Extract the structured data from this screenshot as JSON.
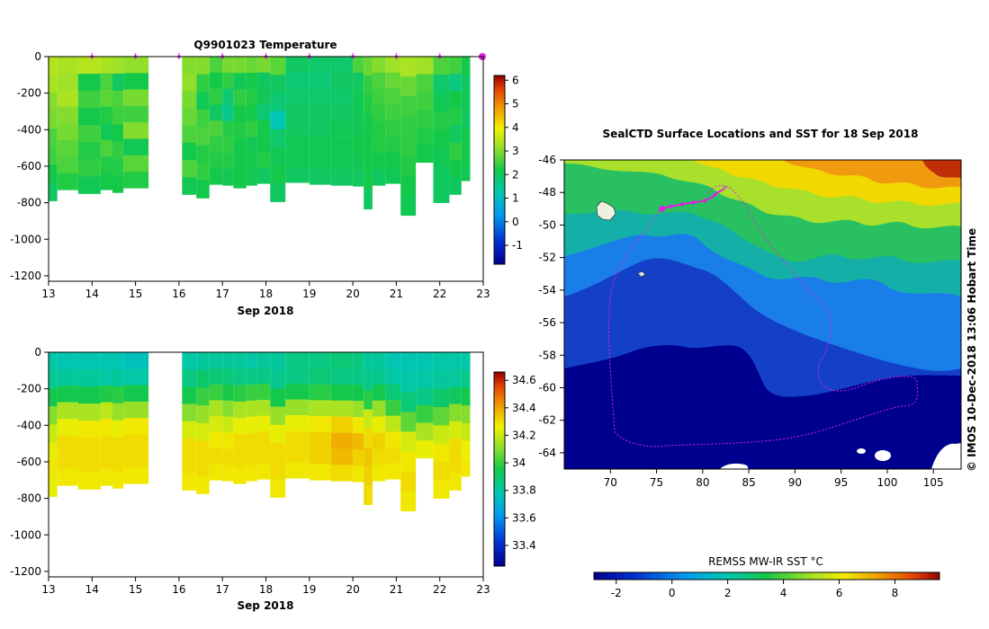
{
  "chart_data": [
    {
      "id": "temp",
      "type": "heatmap",
      "title": "Q9901023  Temperature",
      "xlabel": "Sep 2018",
      "x_ticks": [
        13,
        14,
        15,
        16,
        17,
        18,
        19,
        20,
        21,
        22,
        23
      ],
      "y_ticks": [
        0,
        -200,
        -400,
        -600,
        -800,
        -1000,
        -1200
      ],
      "xlim": [
        13,
        23
      ],
      "ylim": [
        -1230,
        0
      ],
      "profile_times": [
        14,
        15,
        16,
        17,
        18,
        19,
        20,
        21,
        22,
        23
      ],
      "colorbar": {
        "ticks": [
          -1,
          0,
          1,
          2,
          3,
          4,
          5,
          6
        ],
        "range": [
          -1.8,
          6.2
        ]
      },
      "profiles": [
        {
          "t0": 13.0,
          "t1": 13.2,
          "depth": -790,
          "values": [
            3.4,
            3.3,
            3.0,
            2.9,
            2.6,
            2.5,
            2.2,
            2.0
          ]
        },
        {
          "t0": 13.2,
          "t1": 13.68,
          "depth": -730,
          "values": [
            3.3,
            3.2,
            3.3,
            3.0,
            2.9,
            2.7,
            2.6,
            2.3
          ]
        },
        {
          "t0": 13.68,
          "t1": 14.2,
          "depth": -750,
          "values": [
            3.4,
            2.2,
            2.5,
            2.2,
            2.5,
            2.3,
            2.4,
            2.1
          ]
        },
        {
          "t0": 14.2,
          "t1": 14.47,
          "depth": -730,
          "values": [
            3.3,
            2.6,
            2.7,
            2.3,
            2.1,
            2.6,
            2.3,
            2.2
          ]
        },
        {
          "t0": 14.47,
          "t1": 14.72,
          "depth": -745,
          "values": [
            3.2,
            2.0,
            2.6,
            2.5,
            2.2,
            2.4,
            2.3,
            2.2
          ]
        },
        {
          "t0": 14.72,
          "t1": 15.3,
          "depth": -720,
          "values": [
            3.1,
            2.2,
            2.9,
            2.5,
            3.0,
            2.1,
            2.7,
            2.3
          ]
        },
        {
          "t0": 16.07,
          "t1": 16.4,
          "depth": -755,
          "values": [
            3.0,
            3.1,
            2.9,
            2.8,
            2.6,
            2.2,
            2.6,
            2.1
          ]
        },
        {
          "t0": 16.4,
          "t1": 16.7,
          "depth": -775,
          "values": [
            3.0,
            2.4,
            2.1,
            2.5,
            2.6,
            2.3,
            2.4,
            2.2
          ]
        },
        {
          "t0": 16.7,
          "t1": 17.0,
          "depth": -700,
          "values": [
            2.6,
            2.2,
            2.4,
            2.0,
            2.6,
            2.4,
            2.3,
            2.2
          ]
        },
        {
          "t0": 17.0,
          "t1": 17.25,
          "depth": -705,
          "values": [
            2.9,
            2.4,
            1.8,
            1.6,
            2.3,
            2.4,
            2.3,
            2.1
          ]
        },
        {
          "t0": 17.25,
          "t1": 17.55,
          "depth": -720,
          "values": [
            2.9,
            2.1,
            2.4,
            2.2,
            2.3,
            2.2,
            2.2,
            2.2
          ]
        },
        {
          "t0": 17.55,
          "t1": 17.8,
          "depth": -705,
          "values": [
            2.8,
            2.2,
            2.3,
            2.2,
            2.4,
            2.1,
            2.2,
            2.1
          ]
        },
        {
          "t0": 17.8,
          "t1": 18.1,
          "depth": -695,
          "values": [
            2.9,
            2.0,
            2.1,
            1.8,
            2.2,
            2.2,
            2.3,
            2.0
          ]
        },
        {
          "t0": 18.1,
          "t1": 18.45,
          "depth": -795,
          "values": [
            2.7,
            2.0,
            1.8,
            1.2,
            1.9,
            2.1,
            2.2,
            2.0
          ]
        },
        {
          "t0": 18.45,
          "t1": 19.0,
          "depth": -690,
          "values": [
            2.0,
            1.8,
            1.9,
            2.0,
            2.0,
            2.1,
            2.1,
            2.0
          ]
        },
        {
          "t0": 19.0,
          "t1": 19.5,
          "depth": -700,
          "values": [
            1.9,
            1.8,
            1.9,
            2.0,
            2.0,
            2.1,
            2.1,
            2.0
          ]
        },
        {
          "t0": 19.5,
          "t1": 20.0,
          "depth": -705,
          "values": [
            1.9,
            2.0,
            1.9,
            2.0,
            2.1,
            2.1,
            2.1,
            2.0
          ]
        },
        {
          "t0": 20.0,
          "t1": 20.25,
          "depth": -710,
          "values": [
            2.6,
            2.0,
            2.1,
            2.1,
            2.1,
            2.2,
            2.1,
            2.0
          ]
        },
        {
          "t0": 20.25,
          "t1": 20.45,
          "depth": -835,
          "values": [
            2.8,
            2.4,
            2.3,
            2.2,
            2.2,
            2.2,
            2.2,
            2.0
          ]
        },
        {
          "t0": 20.45,
          "t1": 20.75,
          "depth": -705,
          "values": [
            3.0,
            2.6,
            2.5,
            2.4,
            2.3,
            2.3,
            2.2,
            2.0
          ]
        },
        {
          "t0": 20.75,
          "t1": 21.1,
          "depth": -695,
          "values": [
            3.2,
            2.8,
            2.6,
            2.5,
            2.4,
            2.3,
            2.2,
            2.1
          ]
        },
        {
          "t0": 21.1,
          "t1": 21.45,
          "depth": -870,
          "values": [
            3.3,
            2.8,
            2.5,
            2.4,
            2.4,
            2.3,
            2.2,
            2.1
          ]
        },
        {
          "t0": 21.45,
          "t1": 21.85,
          "depth": -580,
          "values": [
            3.2,
            2.6,
            2.5,
            2.4,
            2.3,
            2.2
          ]
        },
        {
          "t0": 21.85,
          "t1": 22.22,
          "depth": -800,
          "values": [
            2.6,
            1.9,
            2.1,
            2.3,
            2.2,
            2.1,
            2.0,
            2.0
          ]
        },
        {
          "t0": 22.22,
          "t1": 22.5,
          "depth": -755,
          "values": [
            2.5,
            1.7,
            2.2,
            2.3,
            2.0,
            2.4,
            2.2,
            2.0
          ]
        },
        {
          "t0": 22.5,
          "t1": 22.7,
          "depth": -680,
          "values": [
            2.2,
            2.0,
            2.1,
            2.0,
            2.2,
            2.2,
            2.1
          ]
        }
      ]
    },
    {
      "id": "sal",
      "type": "heatmap",
      "title": "",
      "xlabel": "Sep 2018",
      "x_ticks": [
        13,
        14,
        15,
        16,
        17,
        18,
        19,
        20,
        21,
        22,
        23
      ],
      "y_ticks": [
        0,
        -200,
        -400,
        -600,
        -800,
        -1000,
        -1200
      ],
      "xlim": [
        13,
        23
      ],
      "ylim": [
        -1230,
        0
      ],
      "colorbar": {
        "ticks": [
          33.4,
          33.6,
          33.8,
          34,
          34.2,
          34.4,
          34.6
        ],
        "range": [
          33.25,
          34.66
        ]
      },
      "profiles": [
        {
          "t0": 13.0,
          "t1": 13.2,
          "depth": -790,
          "values": [
            33.8,
            33.83,
            33.95,
            34.1,
            34.2,
            34.25,
            34.28,
            34.25
          ]
        },
        {
          "t0": 13.2,
          "t1": 13.68,
          "depth": -730,
          "values": [
            33.78,
            33.82,
            33.95,
            34.15,
            34.25,
            34.3,
            34.3,
            34.28
          ]
        },
        {
          "t0": 13.68,
          "t1": 14.2,
          "depth": -750,
          "values": [
            33.78,
            33.82,
            33.95,
            34.15,
            34.28,
            34.3,
            34.3,
            34.28
          ]
        },
        {
          "t0": 14.2,
          "t1": 14.47,
          "depth": -730,
          "values": [
            33.78,
            33.8,
            33.97,
            34.18,
            34.28,
            34.3,
            34.3,
            34.28
          ]
        },
        {
          "t0": 14.47,
          "t1": 14.72,
          "depth": -745,
          "values": [
            33.78,
            33.82,
            33.98,
            34.12,
            34.25,
            34.3,
            34.3,
            34.28
          ]
        },
        {
          "t0": 14.72,
          "t1": 15.3,
          "depth": -720,
          "values": [
            33.76,
            33.8,
            33.95,
            34.12,
            34.28,
            34.3,
            34.3,
            34.28
          ]
        },
        {
          "t0": 16.07,
          "t1": 16.4,
          "depth": -755,
          "values": [
            33.8,
            33.86,
            33.95,
            34.1,
            34.22,
            34.3,
            34.3,
            34.28
          ]
        },
        {
          "t0": 16.4,
          "t1": 16.7,
          "depth": -775,
          "values": [
            33.82,
            33.9,
            34.0,
            34.12,
            34.22,
            34.3,
            34.3,
            34.28
          ]
        },
        {
          "t0": 16.7,
          "t1": 17.0,
          "depth": -700,
          "values": [
            33.82,
            33.88,
            34.0,
            34.15,
            34.22,
            34.28,
            34.3,
            34.28
          ]
        },
        {
          "t0": 17.0,
          "t1": 17.25,
          "depth": -705,
          "values": [
            33.82,
            33.88,
            33.96,
            34.1,
            34.2,
            34.28,
            34.3,
            34.28
          ]
        },
        {
          "t0": 17.25,
          "t1": 17.55,
          "depth": -720,
          "values": [
            33.82,
            33.86,
            33.98,
            34.15,
            34.25,
            34.3,
            34.3,
            34.28
          ]
        },
        {
          "t0": 17.55,
          "t1": 17.8,
          "depth": -705,
          "values": [
            33.8,
            33.86,
            34.0,
            34.15,
            34.25,
            34.3,
            34.3,
            34.28
          ]
        },
        {
          "t0": 17.8,
          "t1": 18.1,
          "depth": -695,
          "values": [
            33.82,
            33.86,
            34.0,
            34.15,
            34.25,
            34.3,
            34.3,
            34.28
          ]
        },
        {
          "t0": 18.1,
          "t1": 18.45,
          "depth": -795,
          "values": [
            33.82,
            33.84,
            33.95,
            34.12,
            34.25,
            34.3,
            34.3,
            34.28
          ]
        },
        {
          "t0": 18.45,
          "t1": 19.0,
          "depth": -690,
          "values": [
            33.86,
            33.86,
            33.95,
            34.12,
            34.25,
            34.3,
            34.3,
            34.28
          ]
        },
        {
          "t0": 19.0,
          "t1": 19.5,
          "depth": -700,
          "values": [
            33.86,
            33.88,
            33.98,
            34.15,
            34.28,
            34.32,
            34.32,
            34.28
          ]
        },
        {
          "t0": 19.5,
          "t1": 20.0,
          "depth": -705,
          "values": [
            33.88,
            33.86,
            33.95,
            34.15,
            34.32,
            34.38,
            34.36,
            34.3
          ]
        },
        {
          "t0": 20.0,
          "t1": 20.25,
          "depth": -710,
          "values": [
            33.86,
            33.86,
            33.95,
            34.12,
            34.28,
            34.36,
            34.32,
            34.28
          ]
        },
        {
          "t0": 20.25,
          "t1": 20.45,
          "depth": -835,
          "values": [
            33.82,
            33.85,
            33.98,
            34.2,
            34.3,
            34.34,
            34.32,
            34.3
          ]
        },
        {
          "t0": 20.45,
          "t1": 20.75,
          "depth": -705,
          "values": [
            33.82,
            33.84,
            33.95,
            34.12,
            34.25,
            34.32,
            34.3,
            34.28
          ]
        },
        {
          "t0": 20.75,
          "t1": 21.1,
          "depth": -695,
          "values": [
            33.78,
            33.8,
            33.88,
            34.0,
            34.18,
            34.28,
            34.3,
            34.28
          ]
        },
        {
          "t0": 21.1,
          "t1": 21.45,
          "depth": -870,
          "values": [
            33.78,
            33.8,
            33.88,
            34.05,
            34.22,
            34.28,
            34.3,
            34.28
          ]
        },
        {
          "t0": 21.45,
          "t1": 21.85,
          "depth": -580,
          "values": [
            33.78,
            33.8,
            33.85,
            34.0,
            34.15,
            34.25
          ]
        },
        {
          "t0": 21.85,
          "t1": 22.22,
          "depth": -800,
          "values": [
            33.8,
            33.82,
            33.9,
            34.05,
            34.2,
            34.28,
            34.3,
            34.28
          ]
        },
        {
          "t0": 22.22,
          "t1": 22.5,
          "depth": -755,
          "values": [
            33.8,
            33.82,
            33.92,
            34.1,
            34.22,
            34.3,
            34.3,
            34.28
          ]
        },
        {
          "t0": 22.5,
          "t1": 22.7,
          "depth": -680,
          "values": [
            33.8,
            33.85,
            33.95,
            34.1,
            34.2,
            34.26,
            34.28
          ]
        }
      ]
    },
    {
      "id": "map",
      "type": "heatmap",
      "title": "SealCTD Surface Locations and SST for 18 Sep 2018",
      "xlabel": "",
      "x_ticks": [
        70,
        75,
        80,
        85,
        90,
        95,
        100,
        105
      ],
      "y_ticks": [
        -46,
        -48,
        -50,
        -52,
        -54,
        -56,
        -58,
        -60,
        -62,
        -64
      ],
      "xlim": [
        65,
        108
      ],
      "ylim": [
        -65,
        -46
      ],
      "side_label": "© IMOS 10-Dec-2018 13:06 Hobart Time",
      "colorbar": {
        "label": "REMSS MW-IR SST °C",
        "ticks": [
          -2,
          0,
          2,
          4,
          6,
          8
        ],
        "range": [
          -2.8,
          9.6
        ]
      },
      "seal_track": [
        [
          75.6,
          -49.0
        ],
        [
          76.2,
          -48.9
        ],
        [
          77.0,
          -48.8
        ],
        [
          78.0,
          -48.7
        ],
        [
          79.2,
          -48.6
        ],
        [
          80.2,
          -48.5
        ],
        [
          81.0,
          -48.3
        ],
        [
          81.6,
          -48.0
        ],
        [
          82.3,
          -47.8
        ]
      ],
      "track_positions": [
        [
          75.6,
          -49.0
        ],
        [
          76.6,
          -48.85
        ],
        [
          77.8,
          -48.72
        ],
        [
          79.0,
          -48.62
        ],
        [
          80.2,
          -48.5
        ],
        [
          81.3,
          -48.15
        ]
      ]
    }
  ]
}
